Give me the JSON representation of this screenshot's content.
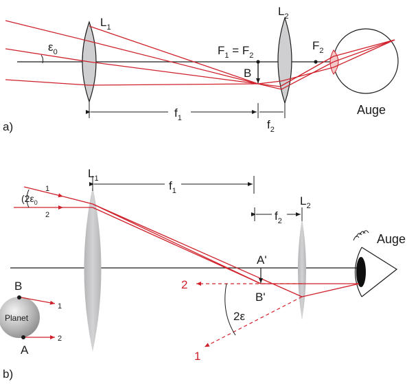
{
  "panel_a": {
    "panel_label": "a)",
    "lens1": "L",
    "lens1_sub": "1",
    "lens2": "L",
    "lens2_sub": "2",
    "angle": "ε",
    "angle_sub": "0",
    "focal_eq_f": "F",
    "focal_eq_sub1": "1",
    "focal_eq_mid": " = F",
    "focal_eq_sub2": "2",
    "f2_point": "F",
    "f2_point_sub": "2",
    "image_point": "B",
    "f1": "f",
    "f1_sub": "1",
    "f2": "f",
    "f2_sub": "2",
    "eye": "Auge"
  },
  "panel_b": {
    "panel_label": "b)",
    "lens1": "L",
    "lens1_sub": "1",
    "lens2": "L",
    "lens2_sub": "2",
    "f1": "f",
    "f1_sub": "1",
    "f2": "f",
    "f2_sub": "2",
    "angle_in": "(2ε",
    "angle_in_sub": "0",
    "ray1": "1",
    "ray2": "2",
    "point_a_prime": "A'",
    "point_b_prime": "B'",
    "angle_out": "2ε",
    "out_ray2": "2",
    "out_ray1": "1",
    "eye": "Auge",
    "planet": "Planet",
    "planet_b": "B",
    "planet_a": "A",
    "planet_ray1": "1",
    "planet_ray2": "2"
  },
  "colors": {
    "ray": "#d0202a",
    "lens_fill": "#cfcfd1",
    "lens_b_fill": "#c2c2c4",
    "line": "#1a1a1a"
  }
}
